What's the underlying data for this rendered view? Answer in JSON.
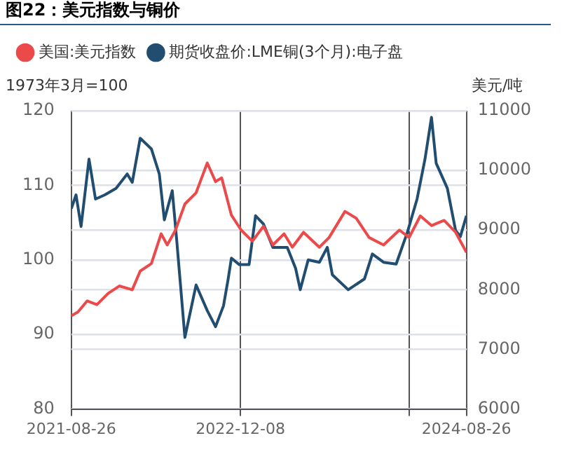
{
  "chart_data": {
    "type": "line",
    "title": "图22：美元指数与铜价",
    "ylabel": "1973年3月=100",
    "y2label": "美元/吨",
    "xlim": [
      "2021-08-26",
      "2024-08-26"
    ],
    "xticks": [
      {
        "value": "2021-08-26",
        "label": "2021-08-26"
      },
      {
        "value": "2022-12-08",
        "label": "2022-12-08"
      },
      {
        "value": "2024-03-20",
        "label": null
      },
      {
        "value": "2024-08-26",
        "label": "2024-08-26"
      }
    ],
    "ylim": [
      80,
      120
    ],
    "yticks": [
      80,
      90,
      100,
      110,
      120
    ],
    "y2lim": [
      6000,
      11000
    ],
    "y2ticks": [
      6000,
      7000,
      8000,
      9000,
      10000,
      11000
    ],
    "grid": true,
    "legend": "top",
    "marker": "none",
    "line_style": "solid",
    "series": [
      {
        "name": "美国:美元指数",
        "color": "#ec4a4a",
        "x": [
          "2021-08-26",
          "2021-09-13",
          "2021-10-09",
          "2021-11-05",
          "2021-12-06",
          "2022-01-06",
          "2022-02-11",
          "2022-03-05",
          "2022-04-05",
          "2022-05-02",
          "2022-05-19",
          "2022-06-11",
          "2022-07-07",
          "2022-08-07",
          "2022-09-07",
          "2022-09-30",
          "2022-10-17",
          "2022-11-13",
          "2022-12-10",
          "2023-01-10",
          "2023-02-10",
          "2023-03-08",
          "2023-04-08",
          "2023-05-01",
          "2023-06-01",
          "2023-07-15",
          "2023-08-11",
          "2023-09-24",
          "2023-10-25",
          "2023-11-30",
          "2024-01-09",
          "2024-02-22",
          "2024-03-20",
          "2024-04-20",
          "2024-05-21",
          "2024-06-25",
          "2024-07-27",
          "2024-08-26"
        ],
        "values": [
          92.5,
          93,
          94.5,
          94,
          95.5,
          96.5,
          96,
          98.5,
          99.5,
          103.5,
          102,
          104,
          107.5,
          109,
          113,
          110.5,
          111,
          106,
          104,
          102.5,
          104.5,
          102,
          103.5,
          101.7,
          103.7,
          101.7,
          103,
          106.5,
          105.6,
          103,
          102,
          104,
          103,
          105.9,
          104.6,
          105.3,
          103.7,
          101
        ]
      },
      {
        "name": "期货收盘价:LME铜(3个月):电子盘",
        "color": "#214d70",
        "axis": "y2",
        "x": [
          "2021-08-26",
          "2021-09-08",
          "2021-09-22",
          "2021-10-14",
          "2021-11-01",
          "2021-11-27",
          "2021-12-28",
          "2022-01-28",
          "2022-02-11",
          "2022-03-05",
          "2022-04-05",
          "2022-04-27",
          "2022-05-11",
          "2022-06-02",
          "2022-06-15",
          "2022-07-07",
          "2022-08-07",
          "2022-09-07",
          "2022-09-30",
          "2022-10-22",
          "2022-11-04",
          "2022-11-13",
          "2022-12-05",
          "2023-01-01",
          "2023-01-19",
          "2023-02-10",
          "2023-03-08",
          "2023-04-17",
          "2023-05-10",
          "2023-05-23",
          "2023-06-14",
          "2023-07-15",
          "2023-08-06",
          "2023-08-20",
          "2023-10-03",
          "2023-11-17",
          "2023-12-09",
          "2024-01-09",
          "2024-02-13",
          "2024-03-15",
          "2024-04-11",
          "2024-05-03",
          "2024-05-21",
          "2024-06-03",
          "2024-07-04",
          "2024-07-27",
          "2024-08-09",
          "2024-08-26"
        ],
        "values": [
          9360,
          9590,
          9060,
          10190,
          9520,
          9590,
          9700,
          9940,
          9800,
          10540,
          10360,
          9940,
          9170,
          9660,
          8780,
          7200,
          8080,
          7650,
          7380,
          7730,
          8180,
          8530,
          8420,
          8420,
          9240,
          9100,
          8710,
          8710,
          8360,
          8000,
          8500,
          8460,
          8710,
          8250,
          8000,
          8180,
          8600,
          8460,
          8430,
          8960,
          9520,
          10190,
          10890,
          10120,
          9700,
          8990,
          8890,
          9240
        ]
      }
    ]
  }
}
